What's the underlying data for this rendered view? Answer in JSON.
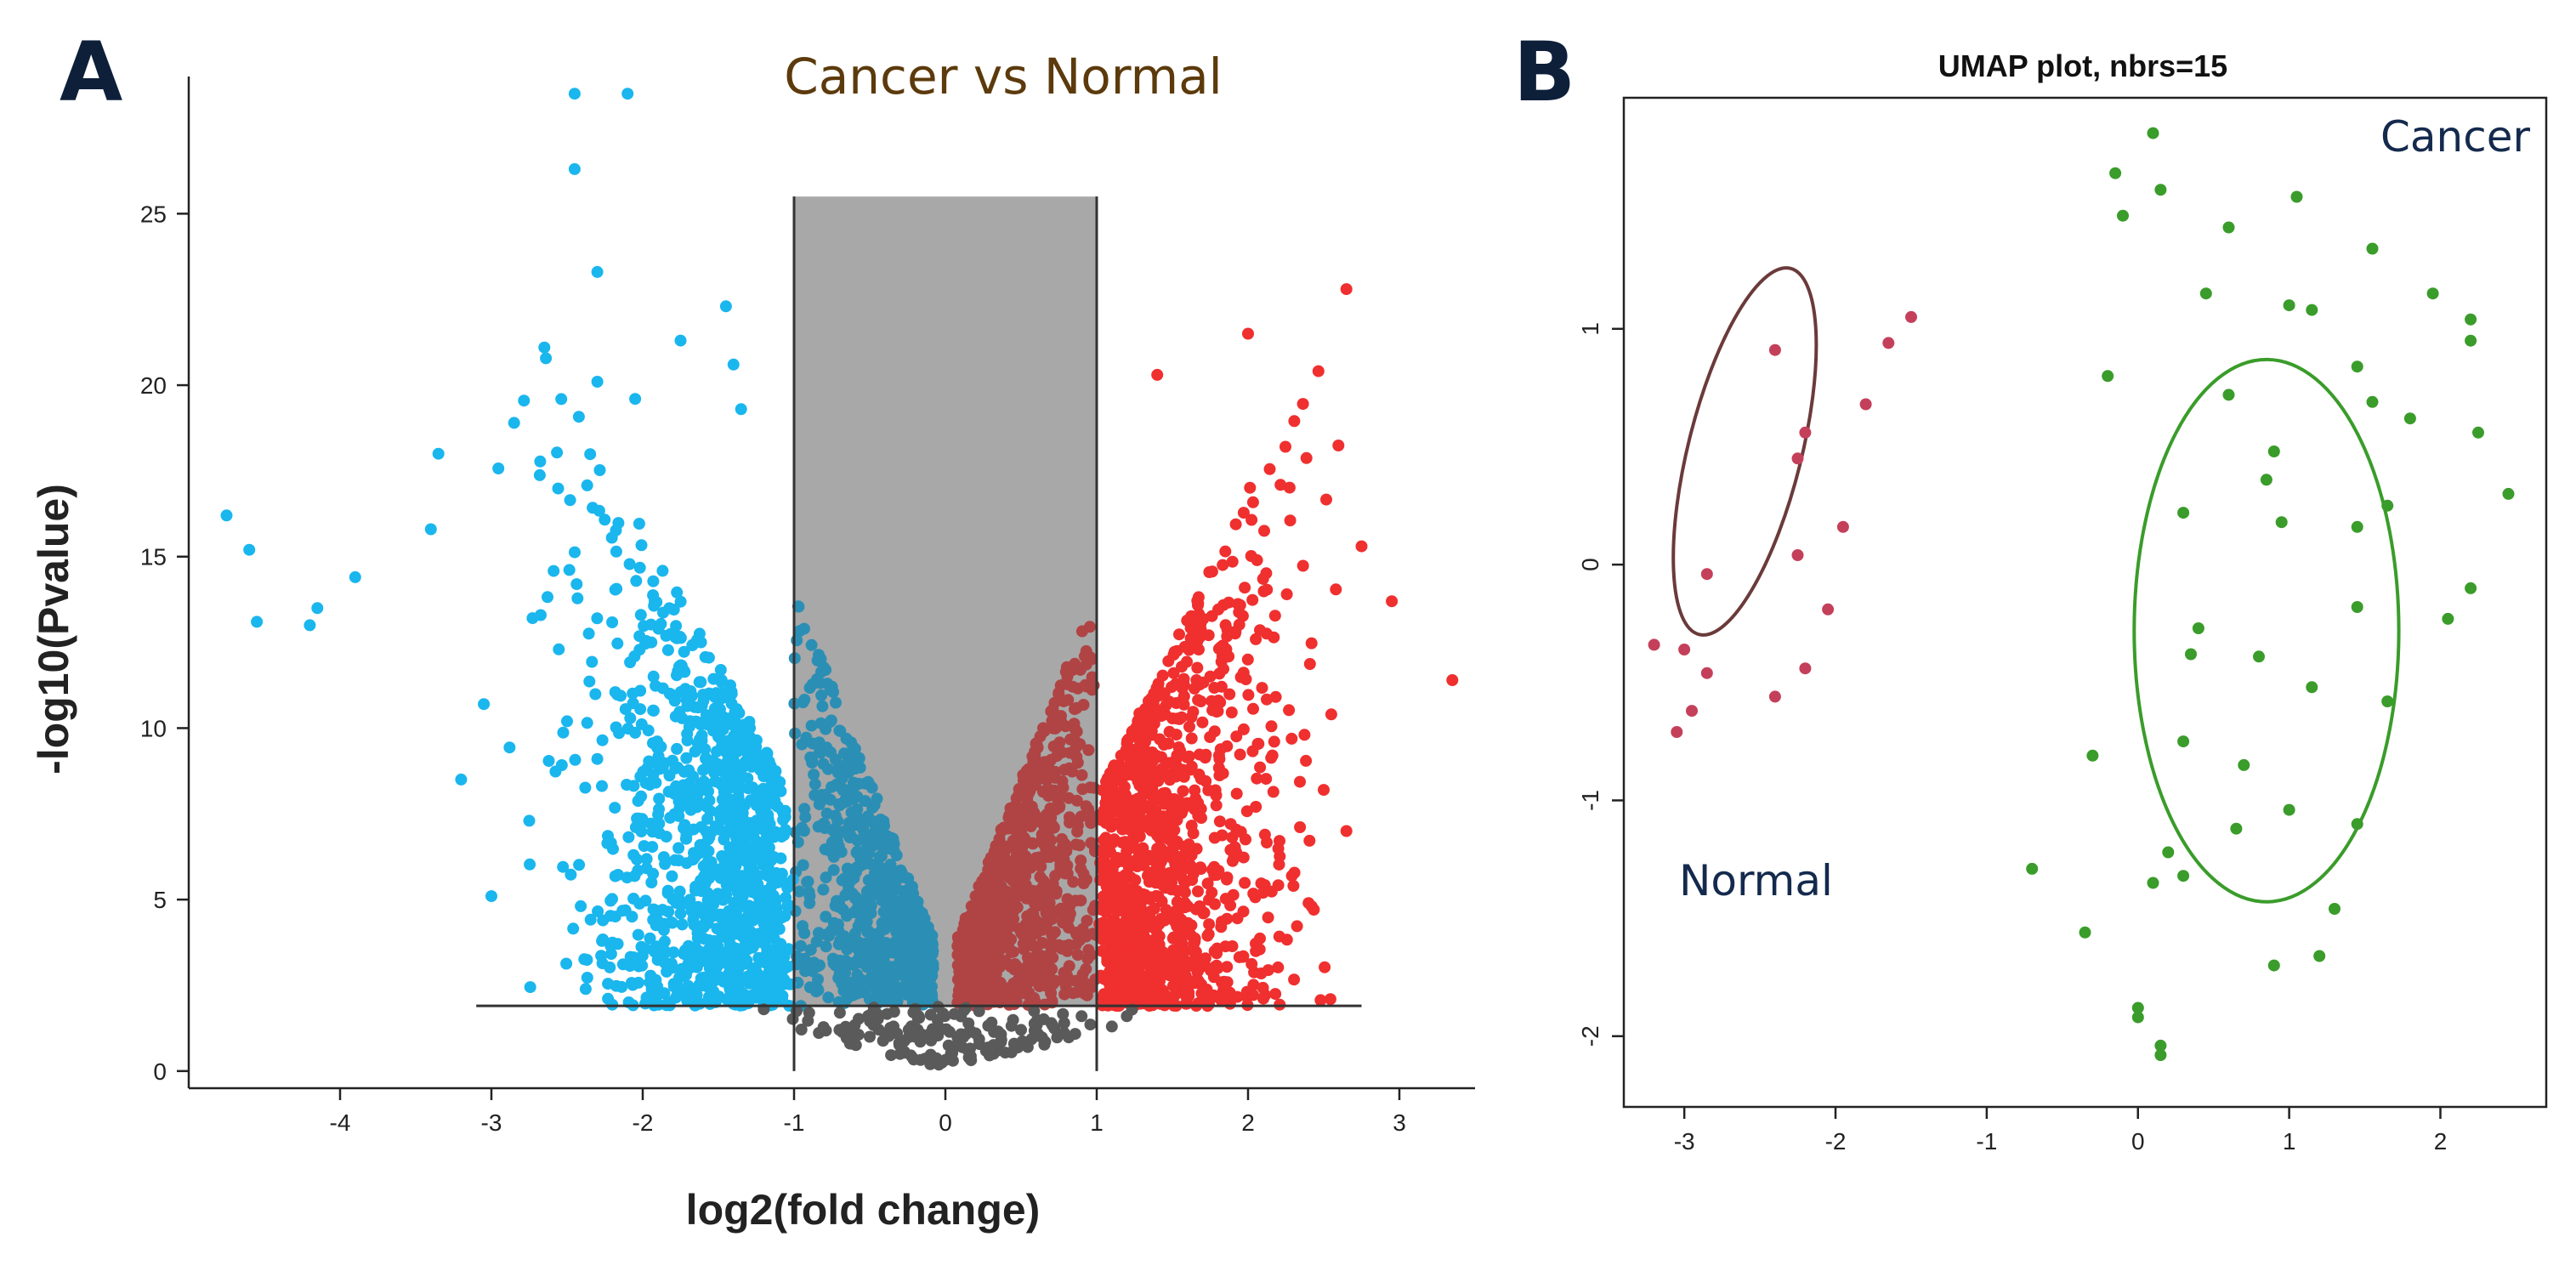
{
  "panels": {
    "a": "A",
    "b": "B"
  },
  "chart_data": [
    {
      "id": "volcano",
      "type": "scatter",
      "title": "Cancer vs Normal",
      "xlabel": "log2(fold change)",
      "ylabel": "-log10(Pvalue)",
      "xlim": [
        -5,
        3.5
      ],
      "ylim": [
        -0.5,
        29
      ],
      "x_ticks": [
        -4,
        -3,
        -2,
        -1,
        0,
        1,
        2,
        3
      ],
      "y_ticks": [
        0,
        5,
        10,
        15,
        20,
        25
      ],
      "threshold_lines": {
        "log2fc": [
          -1,
          1
        ],
        "neg_log10_p": 1.9
      },
      "shaded_region": {
        "x": [
          -1,
          1
        ],
        "y": [
          1.9,
          25.5
        ]
      },
      "colors": {
        "down": "#1ab6ee",
        "down_in": "#2b8fb5",
        "up": "#f02f2f",
        "up_in": "#b04444",
        "ns": "#5a5a5a",
        "shade": "#a8a8a8"
      },
      "series": [
        {
          "key": "down",
          "values": [
            [
              -4.75,
              16.2
            ],
            [
              -4.6,
              15.2
            ],
            [
              -4.55,
              13.1
            ],
            [
              -4.2,
              13
            ],
            [
              -4.15,
              13.5
            ],
            [
              -3.9,
              14.4
            ],
            [
              -3.35,
              18
            ],
            [
              -3.4,
              15.8
            ],
            [
              -2.45,
              28.5
            ],
            [
              -2.1,
              28.5
            ],
            [
              -2.45,
              26.3
            ],
            [
              -2.3,
              23.3
            ],
            [
              -1.75,
              21.3
            ],
            [
              -1.45,
              22.3
            ],
            [
              -2.3,
              20.1
            ],
            [
              -2.05,
              19.6
            ],
            [
              -1.4,
              20.6
            ],
            [
              -1.35,
              19.3
            ],
            [
              -2.85,
              18.9
            ],
            [
              -2.65,
              21.1
            ],
            [
              -3.05,
              10.7
            ],
            [
              -3.0,
              5.1
            ],
            [
              -3.2,
              8.5
            ],
            [
              -2.5,
              10.2
            ],
            [
              -2.3,
              9.1
            ],
            [
              -2.75,
              7.3
            ],
            [
              -1.2,
              4.3
            ],
            [
              -1.1,
              3.2
            ]
          ]
        },
        {
          "key": "up",
          "values": [
            [
              2.65,
              22.8
            ],
            [
              2.0,
              21.5
            ],
            [
              1.4,
              20.3
            ],
            [
              2.75,
              15.3
            ],
            [
              2.95,
              13.7
            ],
            [
              3.35,
              11.4
            ],
            [
              2.55,
              10.4
            ],
            [
              2.65,
              7.0
            ],
            [
              2.4,
              4.9
            ],
            [
              2.1,
              5.2
            ],
            [
              1.8,
              3.0
            ],
            [
              2.3,
              5.4
            ],
            [
              2.5,
              8.2
            ]
          ]
        },
        {
          "key": "ns",
          "values": [
            [
              -0.1,
              0.2
            ],
            [
              0.05,
              0.3
            ],
            [
              0.15,
              0.6
            ],
            [
              -0.3,
              0.5
            ],
            [
              0.3,
              0.7
            ],
            [
              -0.5,
              1.0
            ],
            [
              0.5,
              1.2
            ],
            [
              -0.7,
              1.2
            ],
            [
              0.7,
              1.4
            ],
            [
              -0.9,
              1.7
            ],
            [
              0.9,
              1.6
            ],
            [
              -1.2,
              1.8
            ],
            [
              1.1,
              1.3
            ],
            [
              -0.2,
              1.0
            ],
            [
              0.2,
              1.1
            ]
          ]
        }
      ]
    },
    {
      "id": "umap",
      "type": "scatter",
      "title": "UMAP plot, nbrs=15",
      "xlim": [
        -3.4,
        2.7
      ],
      "ylim": [
        -2.3,
        1.98
      ],
      "x_ticks": [
        -3,
        -2,
        -1,
        0,
        1,
        2
      ],
      "y_ticks": [
        -2,
        -1,
        0,
        1
      ],
      "colors": {
        "normal": "#c4405a",
        "cancer": "#3a9c2a",
        "normal_ellipse": "#6b3a3a",
        "cancer_ellipse": "#3a9c2a"
      },
      "series": [
        {
          "name": "Normal",
          "color_key": "normal",
          "values": [
            [
              -1.5,
              1.05
            ],
            [
              -1.65,
              0.94
            ],
            [
              -2.4,
              0.91
            ],
            [
              -1.8,
              0.68
            ],
            [
              -2.2,
              0.56
            ],
            [
              -2.25,
              0.45
            ],
            [
              -1.95,
              0.16
            ],
            [
              -2.25,
              0.04
            ],
            [
              -2.85,
              -0.04
            ],
            [
              -2.05,
              -0.19
            ],
            [
              -3.2,
              -0.34
            ],
            [
              -3.0,
              -0.36
            ],
            [
              -2.85,
              -0.46
            ],
            [
              -2.2,
              -0.44
            ],
            [
              -2.4,
              -0.56
            ],
            [
              -2.95,
              -0.62
            ],
            [
              -3.05,
              -0.71
            ]
          ]
        },
        {
          "name": "Cancer",
          "color_key": "cancer",
          "values": [
            [
              0.1,
              1.83
            ],
            [
              -0.15,
              1.66
            ],
            [
              0.15,
              1.59
            ],
            [
              -0.1,
              1.48
            ],
            [
              1.05,
              1.56
            ],
            [
              0.6,
              1.43
            ],
            [
              1.55,
              1.34
            ],
            [
              0.45,
              1.15
            ],
            [
              1.0,
              1.1
            ],
            [
              1.15,
              1.08
            ],
            [
              1.95,
              1.15
            ],
            [
              2.2,
              1.04
            ],
            [
              2.2,
              0.95
            ],
            [
              1.45,
              0.84
            ],
            [
              -0.2,
              0.8
            ],
            [
              0.6,
              0.72
            ],
            [
              1.55,
              0.69
            ],
            [
              1.8,
              0.62
            ],
            [
              2.25,
              0.56
            ],
            [
              0.9,
              0.48
            ],
            [
              0.85,
              0.36
            ],
            [
              2.45,
              0.3
            ],
            [
              1.65,
              0.25
            ],
            [
              0.3,
              0.22
            ],
            [
              0.95,
              0.18
            ],
            [
              1.45,
              0.16
            ],
            [
              2.2,
              -0.1
            ],
            [
              1.45,
              -0.18
            ],
            [
              2.05,
              -0.23
            ],
            [
              0.4,
              -0.27
            ],
            [
              0.35,
              -0.38
            ],
            [
              0.8,
              -0.39
            ],
            [
              1.15,
              -0.52
            ],
            [
              1.65,
              -0.58
            ],
            [
              0.3,
              -0.75
            ],
            [
              -0.3,
              -0.81
            ],
            [
              0.7,
              -0.85
            ],
            [
              1.0,
              -1.04
            ],
            [
              0.65,
              -1.12
            ],
            [
              1.45,
              -1.1
            ],
            [
              -0.7,
              -1.29
            ],
            [
              0.2,
              -1.22
            ],
            [
              0.3,
              -1.32
            ],
            [
              0.1,
              -1.35
            ],
            [
              1.3,
              -1.46
            ],
            [
              -0.35,
              -1.56
            ],
            [
              1.2,
              -1.66
            ],
            [
              0.9,
              -1.7
            ],
            [
              0.0,
              -1.88
            ],
            [
              0.0,
              -1.92
            ],
            [
              0.15,
              -2.04
            ],
            [
              0.15,
              -2.08
            ]
          ]
        }
      ],
      "ellipses": [
        {
          "group": "Normal",
          "center": [
            -2.6,
            0.48
          ],
          "radii": [
            0.75,
            1.6
          ],
          "rotation_deg": 14,
          "color_key": "normal_ellipse",
          "label": "Normal"
        },
        {
          "group": "Cancer",
          "center": [
            0.85,
            -0.28
          ],
          "radii": [
            1.75,
            2.3
          ],
          "rotation_deg": 0,
          "color_key": "cancer_ellipse",
          "label": "Cancer"
        }
      ]
    }
  ]
}
